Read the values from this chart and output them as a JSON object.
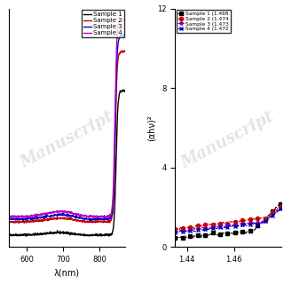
{
  "left_panel": {
    "xlabel": "λ(nm)",
    "xlim": [
      550,
      870
    ],
    "xticks": [
      600,
      700,
      800
    ],
    "samples": [
      {
        "label": "Sample 1",
        "color": "#000000",
        "lw": 1.0
      },
      {
        "label": "Sample 2",
        "color": "#cc0000",
        "lw": 1.0
      },
      {
        "label": "Sample 3",
        "color": "#0000cc",
        "lw": 1.0
      },
      {
        "label": "Sample 4",
        "color": "#bb00bb",
        "lw": 1.0
      }
    ]
  },
  "right_panel": {
    "ylabel": "(αhν)²",
    "xlim": [
      1.435,
      1.48
    ],
    "ylim": [
      0,
      12
    ],
    "xticks": [
      1.44,
      1.46
    ],
    "yticks": [
      0,
      4,
      8,
      12
    ],
    "samples": [
      {
        "label": "Sample 1 (1.468",
        "color": "#000000",
        "marker": "s",
        "lw": 0.8
      },
      {
        "label": "Sample 2 (1.474",
        "color": "#cc0000",
        "marker": "o",
        "lw": 0.8
      },
      {
        "label": "Sample 3 (1.473",
        "color": "#7700aa",
        "marker": "*",
        "lw": 0.8
      },
      {
        "label": "Sample 4 (1.472",
        "color": "#0000bb",
        "marker": "x",
        "lw": 0.8
      }
    ]
  },
  "watermark": "Manuscript",
  "bg": "#ffffff"
}
